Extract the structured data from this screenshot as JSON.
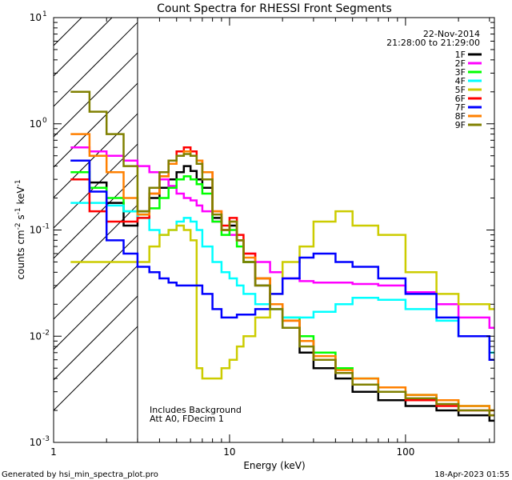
{
  "chart_data": {
    "type": "line",
    "title": "Count Spectra for RHESSI Front Segments",
    "xlabel": "Energy (keV)",
    "ylabel_base": "counts cm",
    "ylabel_exp1": "-2",
    "ylabel_mid": " s",
    "ylabel_exp2": "-1",
    "ylabel_tail": " keV",
    "ylabel_exp3": "-1",
    "x_scale": "log",
    "y_scale": "log",
    "xlim": [
      1,
      320
    ],
    "ylim": [
      0.001,
      10
    ],
    "x_ticks": [
      {
        "value": 1,
        "label": "1"
      },
      {
        "value": 10,
        "label": "10"
      },
      {
        "value": 100,
        "label": "100"
      }
    ],
    "y_ticks": [
      {
        "value": 0.001,
        "base": "10",
        "exp": "-3"
      },
      {
        "value": 0.01,
        "base": "10",
        "exp": "-2"
      },
      {
        "value": 0.1,
        "base": "10",
        "exp": "-1"
      },
      {
        "value": 1,
        "base": "10",
        "exp": "0"
      },
      {
        "value": 10,
        "base": "10",
        "exp": "1"
      }
    ],
    "shaded_region": {
      "x_from": 1,
      "x_to": 3,
      "style": "hatched"
    },
    "date": "22-Nov-2014",
    "time_range": "21:28:00 to 21:29:00",
    "annotations": [
      "Includes Background",
      "Att A0, FDecim 1"
    ],
    "footer_left": "Generated by hsi_min_spectra_plot.pro",
    "footer_right": "18-Apr-2023 01:55",
    "legend_position": "top-right",
    "series": [
      {
        "name": "1F",
        "color": "#000000",
        "points": [
          [
            1.25,
            0.45
          ],
          [
            1.6,
            0.28
          ],
          [
            2.0,
            0.18
          ],
          [
            2.5,
            0.11
          ],
          [
            3.0,
            0.15
          ],
          [
            3.5,
            0.2
          ],
          [
            4.0,
            0.25
          ],
          [
            4.5,
            0.3
          ],
          [
            5.0,
            0.35
          ],
          [
            5.5,
            0.4
          ],
          [
            6.0,
            0.36
          ],
          [
            6.5,
            0.3
          ],
          [
            7.0,
            0.25
          ],
          [
            8.0,
            0.13
          ],
          [
            9.0,
            0.1
          ],
          [
            10.0,
            0.11
          ],
          [
            11.0,
            0.08
          ],
          [
            12.0,
            0.05
          ],
          [
            14.0,
            0.03
          ],
          [
            17.0,
            0.018
          ],
          [
            20.0,
            0.012
          ],
          [
            25.0,
            0.007
          ],
          [
            30.0,
            0.005
          ],
          [
            40.0,
            0.004
          ],
          [
            50.0,
            0.003
          ],
          [
            70.0,
            0.0025
          ],
          [
            100.0,
            0.0022
          ],
          [
            150.0,
            0.002
          ],
          [
            200.0,
            0.0018
          ],
          [
            300.0,
            0.0016
          ]
        ]
      },
      {
        "name": "2F",
        "color": "#ff00ff",
        "points": [
          [
            1.25,
            0.6
          ],
          [
            1.6,
            0.55
          ],
          [
            2.0,
            0.5
          ],
          [
            2.5,
            0.45
          ],
          [
            3.0,
            0.4
          ],
          [
            3.5,
            0.35
          ],
          [
            4.0,
            0.3
          ],
          [
            4.5,
            0.26
          ],
          [
            5.0,
            0.22
          ],
          [
            5.5,
            0.2
          ],
          [
            6.0,
            0.19
          ],
          [
            6.5,
            0.17
          ],
          [
            7.0,
            0.15
          ],
          [
            8.0,
            0.12
          ],
          [
            9.0,
            0.1
          ],
          [
            10.0,
            0.09
          ],
          [
            11.0,
            0.08
          ],
          [
            12.0,
            0.06
          ],
          [
            14.0,
            0.05
          ],
          [
            17.0,
            0.04
          ],
          [
            20.0,
            0.035
          ],
          [
            25.0,
            0.033
          ],
          [
            30.0,
            0.032
          ],
          [
            40.0,
            0.032
          ],
          [
            50.0,
            0.031
          ],
          [
            70.0,
            0.03
          ],
          [
            100.0,
            0.026
          ],
          [
            150.0,
            0.02
          ],
          [
            200.0,
            0.015
          ],
          [
            300.0,
            0.012
          ]
        ]
      },
      {
        "name": "3F",
        "color": "#00ff00",
        "points": [
          [
            1.25,
            0.35
          ],
          [
            1.6,
            0.25
          ],
          [
            2.0,
            0.2
          ],
          [
            2.5,
            0.15
          ],
          [
            3.0,
            0.14
          ],
          [
            3.5,
            0.16
          ],
          [
            4.0,
            0.2
          ],
          [
            4.5,
            0.25
          ],
          [
            5.0,
            0.3
          ],
          [
            5.5,
            0.32
          ],
          [
            6.0,
            0.3
          ],
          [
            6.5,
            0.27
          ],
          [
            7.0,
            0.22
          ],
          [
            8.0,
            0.12
          ],
          [
            9.0,
            0.09
          ],
          [
            10.0,
            0.1
          ],
          [
            11.0,
            0.07
          ],
          [
            12.0,
            0.05
          ],
          [
            14.0,
            0.035
          ],
          [
            17.0,
            0.02
          ],
          [
            20.0,
            0.015
          ],
          [
            25.0,
            0.01
          ],
          [
            30.0,
            0.007
          ],
          [
            40.0,
            0.005
          ],
          [
            50.0,
            0.004
          ],
          [
            70.0,
            0.003
          ],
          [
            100.0,
            0.0028
          ],
          [
            150.0,
            0.0025
          ],
          [
            200.0,
            0.0022
          ],
          [
            300.0,
            0.002
          ]
        ]
      },
      {
        "name": "4F",
        "color": "#00ffff",
        "points": [
          [
            1.25,
            0.18
          ],
          [
            1.6,
            0.18
          ],
          [
            2.0,
            0.17
          ],
          [
            2.5,
            0.15
          ],
          [
            3.0,
            0.13
          ],
          [
            3.5,
            0.1
          ],
          [
            4.0,
            0.09
          ],
          [
            4.5,
            0.1
          ],
          [
            5.0,
            0.12
          ],
          [
            5.5,
            0.13
          ],
          [
            6.0,
            0.12
          ],
          [
            6.5,
            0.1
          ],
          [
            7.0,
            0.07
          ],
          [
            8.0,
            0.05
          ],
          [
            9.0,
            0.04
          ],
          [
            10.0,
            0.035
          ],
          [
            11.0,
            0.03
          ],
          [
            12.0,
            0.025
          ],
          [
            14.0,
            0.02
          ],
          [
            17.0,
            0.018
          ],
          [
            20.0,
            0.015
          ],
          [
            25.0,
            0.015
          ],
          [
            30.0,
            0.017
          ],
          [
            40.0,
            0.02
          ],
          [
            50.0,
            0.023
          ],
          [
            70.0,
            0.022
          ],
          [
            100.0,
            0.018
          ],
          [
            150.0,
            0.014
          ],
          [
            200.0,
            0.01
          ],
          [
            300.0,
            0.007
          ]
        ]
      },
      {
        "name": "5F",
        "color": "#cccc00",
        "points": [
          [
            1.25,
            0.05
          ],
          [
            1.6,
            0.05
          ],
          [
            2.0,
            0.05
          ],
          [
            2.5,
            0.05
          ],
          [
            3.0,
            0.05
          ],
          [
            3.5,
            0.07
          ],
          [
            4.0,
            0.09
          ],
          [
            4.5,
            0.1
          ],
          [
            5.0,
            0.11
          ],
          [
            5.5,
            0.1
          ],
          [
            6.0,
            0.08
          ],
          [
            6.5,
            0.005
          ],
          [
            7.0,
            0.004
          ],
          [
            8.0,
            0.004
          ],
          [
            9.0,
            0.005
          ],
          [
            10.0,
            0.006
          ],
          [
            11.0,
            0.008
          ],
          [
            12.0,
            0.01
          ],
          [
            14.0,
            0.015
          ],
          [
            17.0,
            0.025
          ],
          [
            20.0,
            0.05
          ],
          [
            25.0,
            0.07
          ],
          [
            30.0,
            0.12
          ],
          [
            40.0,
            0.15
          ],
          [
            50.0,
            0.11
          ],
          [
            70.0,
            0.09
          ],
          [
            100.0,
            0.04
          ],
          [
            150.0,
            0.025
          ],
          [
            200.0,
            0.02
          ],
          [
            300.0,
            0.018
          ]
        ]
      },
      {
        "name": "6F",
        "color": "#ff0000",
        "points": [
          [
            1.25,
            0.3
          ],
          [
            1.6,
            0.15
          ],
          [
            2.0,
            0.12
          ],
          [
            2.5,
            0.12
          ],
          [
            3.0,
            0.13
          ],
          [
            3.5,
            0.22
          ],
          [
            4.0,
            0.32
          ],
          [
            4.5,
            0.45
          ],
          [
            5.0,
            0.55
          ],
          [
            5.5,
            0.6
          ],
          [
            6.0,
            0.55
          ],
          [
            6.5,
            0.45
          ],
          [
            7.0,
            0.35
          ],
          [
            8.0,
            0.15
          ],
          [
            9.0,
            0.11
          ],
          [
            10.0,
            0.13
          ],
          [
            11.0,
            0.09
          ],
          [
            12.0,
            0.06
          ],
          [
            14.0,
            0.035
          ],
          [
            17.0,
            0.02
          ],
          [
            20.0,
            0.014
          ],
          [
            25.0,
            0.009
          ],
          [
            30.0,
            0.006
          ],
          [
            40.0,
            0.0045
          ],
          [
            50.0,
            0.0035
          ],
          [
            70.0,
            0.003
          ],
          [
            100.0,
            0.0025
          ],
          [
            150.0,
            0.0022
          ],
          [
            200.0,
            0.002
          ],
          [
            300.0,
            0.0018
          ]
        ]
      },
      {
        "name": "7F",
        "color": "#0000ff",
        "points": [
          [
            1.25,
            0.45
          ],
          [
            1.6,
            0.23
          ],
          [
            2.0,
            0.08
          ],
          [
            2.5,
            0.06
          ],
          [
            3.0,
            0.045
          ],
          [
            3.5,
            0.04
          ],
          [
            4.0,
            0.035
          ],
          [
            4.5,
            0.032
          ],
          [
            5.0,
            0.03
          ],
          [
            5.5,
            0.03
          ],
          [
            6.0,
            0.03
          ],
          [
            6.5,
            0.03
          ],
          [
            7.0,
            0.025
          ],
          [
            8.0,
            0.018
          ],
          [
            9.0,
            0.015
          ],
          [
            10.0,
            0.015
          ],
          [
            11.0,
            0.016
          ],
          [
            12.0,
            0.016
          ],
          [
            14.0,
            0.018
          ],
          [
            17.0,
            0.025
          ],
          [
            20.0,
            0.035
          ],
          [
            25.0,
            0.055
          ],
          [
            30.0,
            0.06
          ],
          [
            40.0,
            0.05
          ],
          [
            50.0,
            0.045
          ],
          [
            70.0,
            0.035
          ],
          [
            100.0,
            0.025
          ],
          [
            150.0,
            0.015
          ],
          [
            200.0,
            0.01
          ],
          [
            300.0,
            0.006
          ]
        ]
      },
      {
        "name": "8F",
        "color": "#ff8000",
        "points": [
          [
            1.25,
            0.8
          ],
          [
            1.6,
            0.5
          ],
          [
            2.0,
            0.35
          ],
          [
            2.5,
            0.2
          ],
          [
            3.0,
            0.14
          ],
          [
            3.5,
            0.22
          ],
          [
            4.0,
            0.32
          ],
          [
            4.5,
            0.42
          ],
          [
            5.0,
            0.5
          ],
          [
            5.5,
            0.55
          ],
          [
            6.0,
            0.5
          ],
          [
            6.5,
            0.45
          ],
          [
            7.0,
            0.35
          ],
          [
            8.0,
            0.15
          ],
          [
            9.0,
            0.1
          ],
          [
            10.0,
            0.12
          ],
          [
            11.0,
            0.08
          ],
          [
            12.0,
            0.055
          ],
          [
            14.0,
            0.035
          ],
          [
            17.0,
            0.02
          ],
          [
            20.0,
            0.014
          ],
          [
            25.0,
            0.009
          ],
          [
            30.0,
            0.0065
          ],
          [
            40.0,
            0.0048
          ],
          [
            50.0,
            0.004
          ],
          [
            70.0,
            0.0033
          ],
          [
            100.0,
            0.0028
          ],
          [
            150.0,
            0.0025
          ],
          [
            200.0,
            0.0022
          ],
          [
            300.0,
            0.002
          ]
        ]
      },
      {
        "name": "9F",
        "color": "#808000",
        "points": [
          [
            1.25,
            2.0
          ],
          [
            1.6,
            1.3
          ],
          [
            2.0,
            0.8
          ],
          [
            2.5,
            0.4
          ],
          [
            3.0,
            0.15
          ],
          [
            3.5,
            0.25
          ],
          [
            4.0,
            0.35
          ],
          [
            4.5,
            0.45
          ],
          [
            5.0,
            0.5
          ],
          [
            5.5,
            0.52
          ],
          [
            6.0,
            0.5
          ],
          [
            6.5,
            0.42
          ],
          [
            7.0,
            0.3
          ],
          [
            8.0,
            0.14
          ],
          [
            9.0,
            0.1
          ],
          [
            10.0,
            0.12
          ],
          [
            11.0,
            0.08
          ],
          [
            12.0,
            0.05
          ],
          [
            14.0,
            0.03
          ],
          [
            17.0,
            0.018
          ],
          [
            20.0,
            0.012
          ],
          [
            25.0,
            0.008
          ],
          [
            30.0,
            0.006
          ],
          [
            40.0,
            0.0045
          ],
          [
            50.0,
            0.0035
          ],
          [
            70.0,
            0.003
          ],
          [
            100.0,
            0.0026
          ],
          [
            150.0,
            0.0023
          ],
          [
            200.0,
            0.002
          ],
          [
            300.0,
            0.0018
          ]
        ]
      }
    ]
  }
}
